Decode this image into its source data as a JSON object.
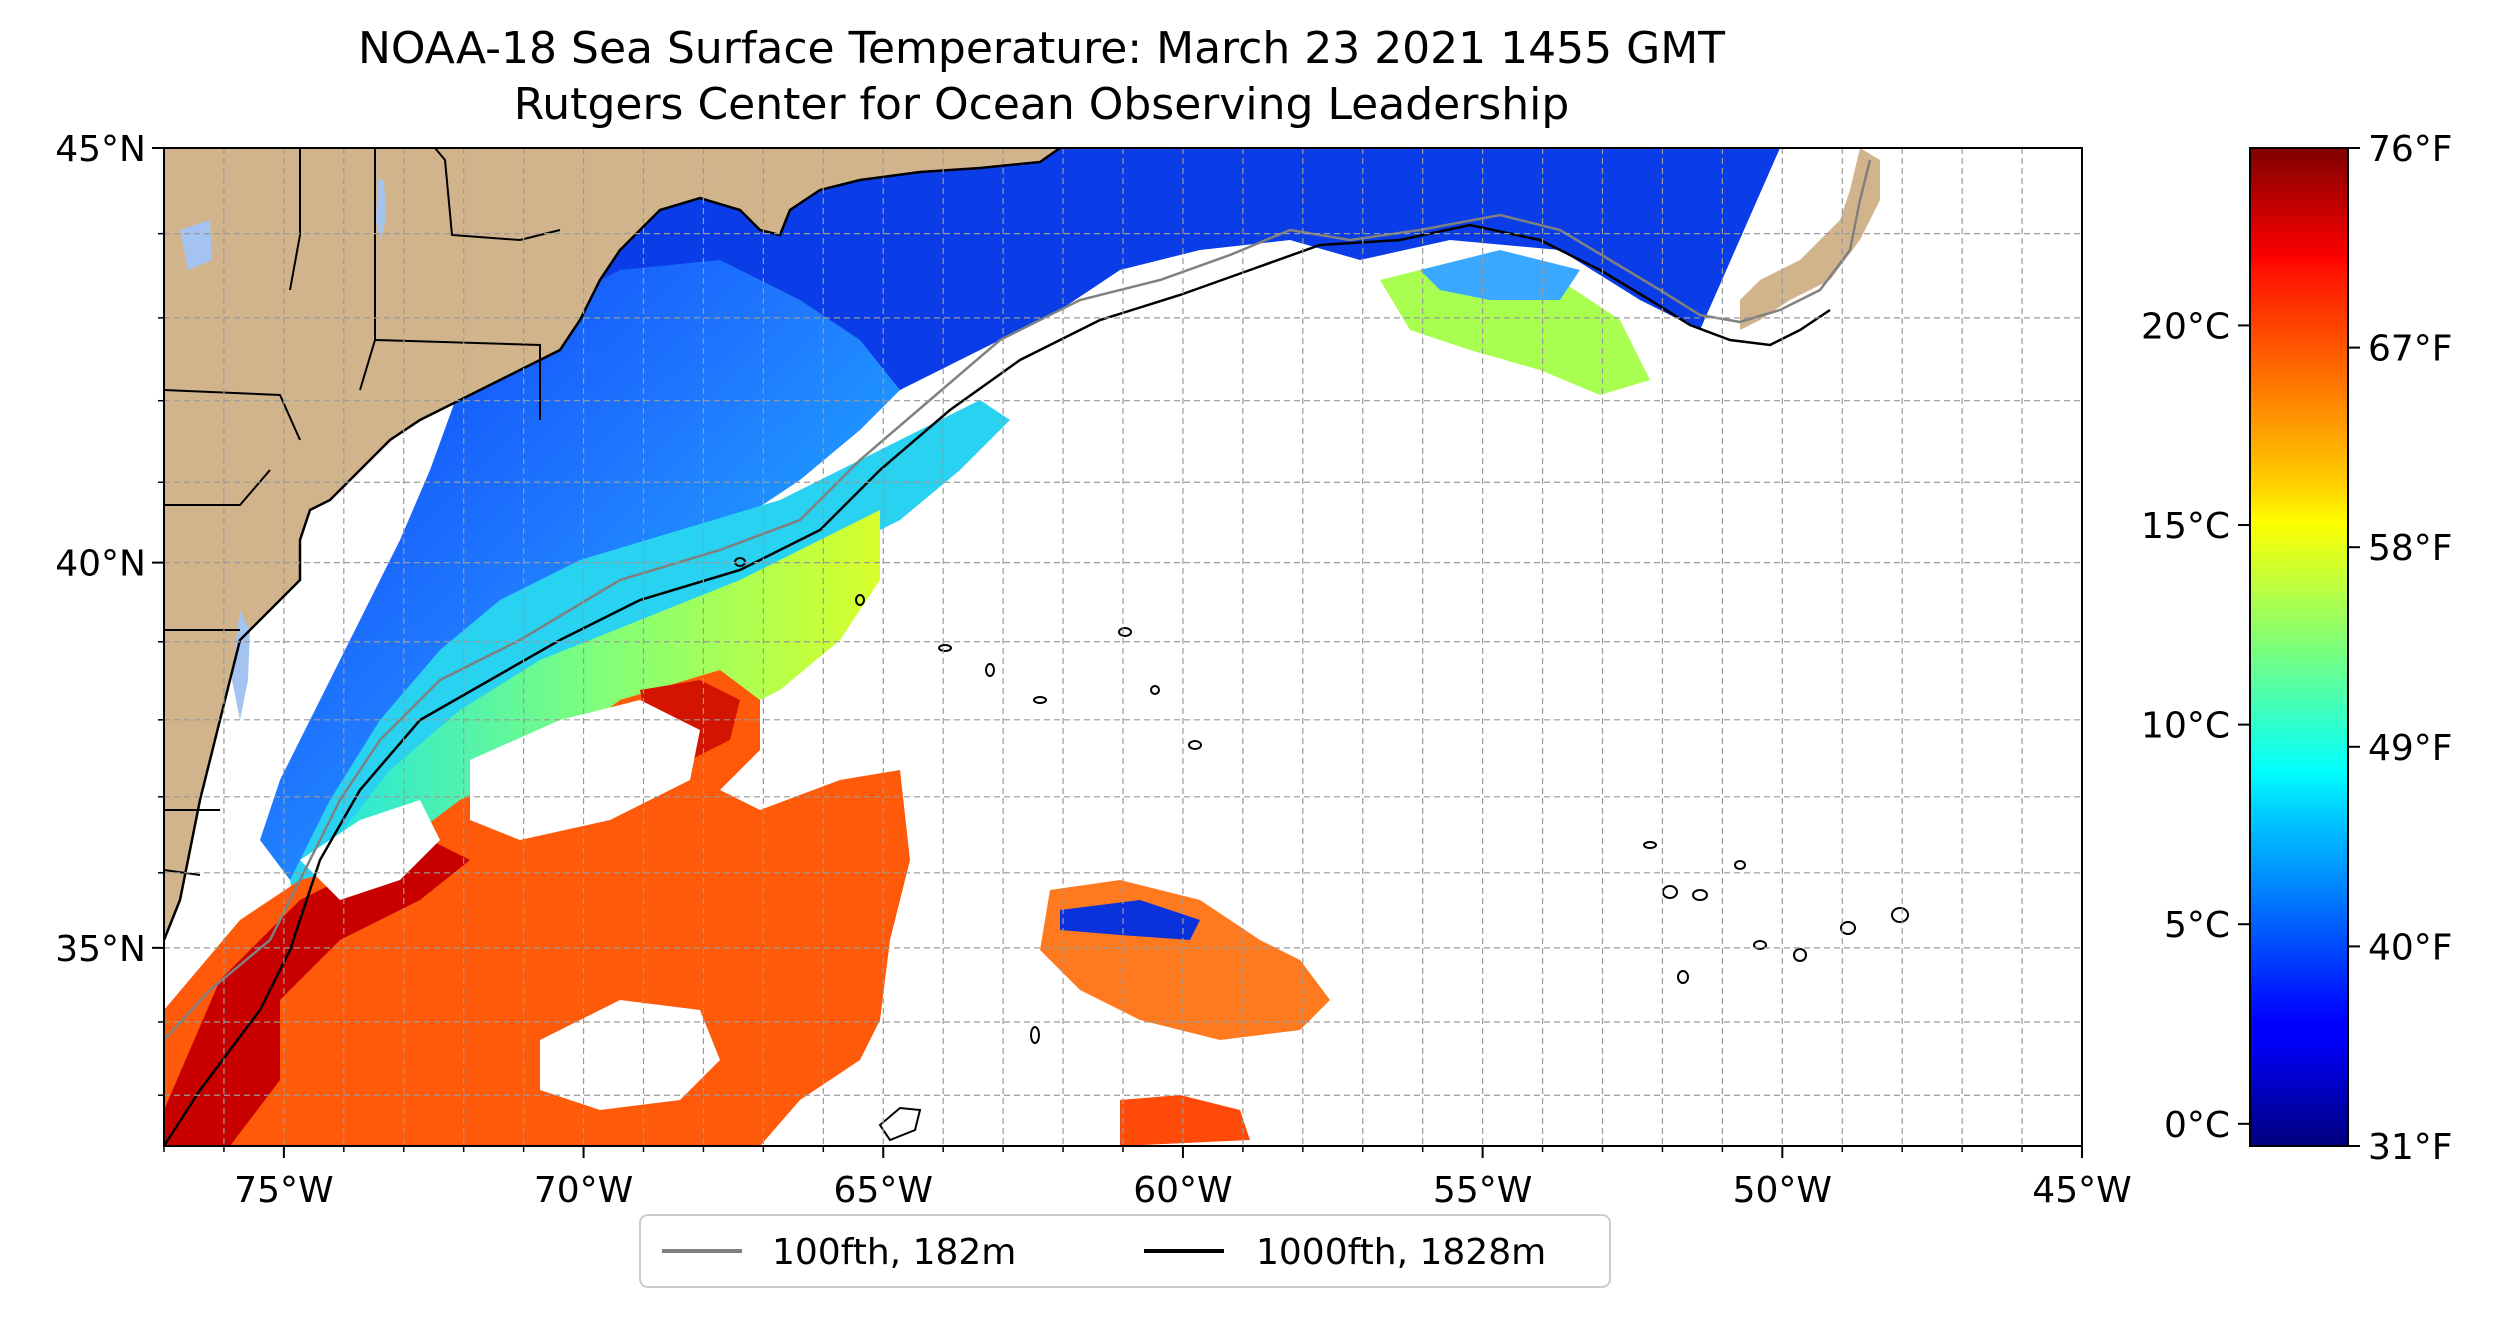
{
  "title": "NOAA-18 Sea Surface Temperature: March 23 2021 1455 GMT",
  "subtitle": "Rutgers Center for Ocean Observing Leadership",
  "map": {
    "lon_range": [
      -77,
      -45
    ],
    "lat_range": [
      32.3,
      45
    ],
    "lon_ticks": [
      "75°W",
      "70°W",
      "65°W",
      "60°W",
      "55°W",
      "50°W",
      "45°W"
    ],
    "lon_tick_values": [
      -75,
      -70,
      -65,
      -60,
      -55,
      -50,
      -45
    ],
    "lat_ticks": [
      "35°N",
      "40°N",
      "45°N"
    ],
    "lat_tick_values": [
      35,
      40,
      45
    ],
    "land_color": "#d2b48c",
    "lake_color": "#a4c3f0",
    "grid": "dashed, every 1 degree"
  },
  "legend": {
    "items": [
      {
        "label": "100fth, 182m",
        "color": "#808080"
      },
      {
        "label": "1000fth, 1828m",
        "color": "#000000"
      }
    ]
  },
  "colorbar": {
    "colormap": "jet",
    "celsius_ticks": [
      "0°C",
      "5°C",
      "10°C",
      "15°C",
      "20°C"
    ],
    "celsius_values": [
      0,
      5,
      10,
      15,
      20
    ],
    "fahrenheit_ticks": [
      "31°F",
      "40°F",
      "49°F",
      "58°F",
      "67°F",
      "76°F"
    ],
    "fahrenheit_values": [
      31,
      40,
      49,
      58,
      67,
      76
    ]
  }
}
